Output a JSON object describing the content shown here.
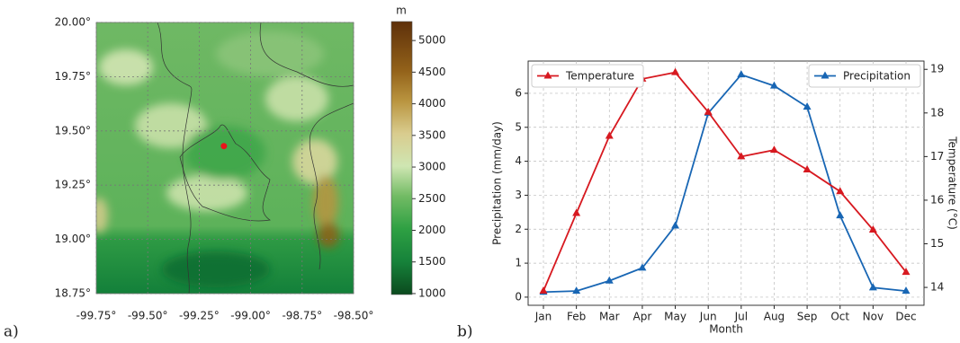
{
  "chart_data": [
    {
      "type": "map",
      "panel_label": "a)",
      "xlim": [
        -99.75,
        -98.5
      ],
      "ylim": [
        18.75,
        20.0
      ],
      "xticks": [
        {
          "value": -99.75,
          "label": "-99.75°"
        },
        {
          "value": -99.5,
          "label": "-99.50°"
        },
        {
          "value": -99.25,
          "label": "-99.25°"
        },
        {
          "value": -99.0,
          "label": "-99.00°"
        },
        {
          "value": -98.75,
          "label": "-98.75°"
        },
        {
          "value": -98.5,
          "label": "-98.50°"
        }
      ],
      "yticks": [
        {
          "value": 18.75,
          "label": "18.75°"
        },
        {
          "value": 19.0,
          "label": "19.00°"
        },
        {
          "value": 19.25,
          "label": "19.25°"
        },
        {
          "value": 19.5,
          "label": "19.50°"
        },
        {
          "value": 19.75,
          "label": "19.75°"
        },
        {
          "value": 20.0,
          "label": "20.00°"
        }
      ],
      "grid": true,
      "colorbar": {
        "label": "m",
        "lim": [
          985,
          5300
        ],
        "ticks": [
          1000,
          1500,
          2000,
          2500,
          3000,
          3500,
          4000,
          4500,
          5000
        ]
      },
      "marker": {
        "x": -99.13,
        "y": 19.43,
        "color": "#e8141b"
      }
    },
    {
      "type": "line",
      "panel_label": "b)",
      "x_label": "Month",
      "y_label": "Precipitation (mm/day)",
      "y2_label": "Temperature (°C)",
      "categories": [
        "Jan",
        "Feb",
        "Mar",
        "Apr",
        "May",
        "Jun",
        "Jul",
        "Aug",
        "Sep",
        "Oct",
        "Nov",
        "Dec"
      ],
      "ylim": [
        -0.24,
        6.95
      ],
      "yticks": [
        0,
        1,
        2,
        3,
        4,
        5,
        6
      ],
      "y2lim": [
        13.59,
        19.19
      ],
      "y2ticks": [
        14,
        15,
        16,
        17,
        18,
        19
      ],
      "grid": true,
      "series": [
        {
          "name": "Precipitation",
          "color": "#1866b4",
          "legend": "upper right",
          "values": [
            0.15,
            0.18,
            0.48,
            0.86,
            2.1,
            5.42,
            6.55,
            6.22,
            5.6,
            2.4,
            0.28,
            0.18
          ]
        },
        {
          "name": "Temperature",
          "color": "#d71920",
          "axis": "y2",
          "legend": "upper left",
          "values": [
            13.92,
            15.7,
            17.47,
            18.78,
            18.93,
            18.02,
            17.0,
            17.15,
            16.7,
            16.2,
            15.32,
            14.35
          ]
        }
      ]
    }
  ]
}
